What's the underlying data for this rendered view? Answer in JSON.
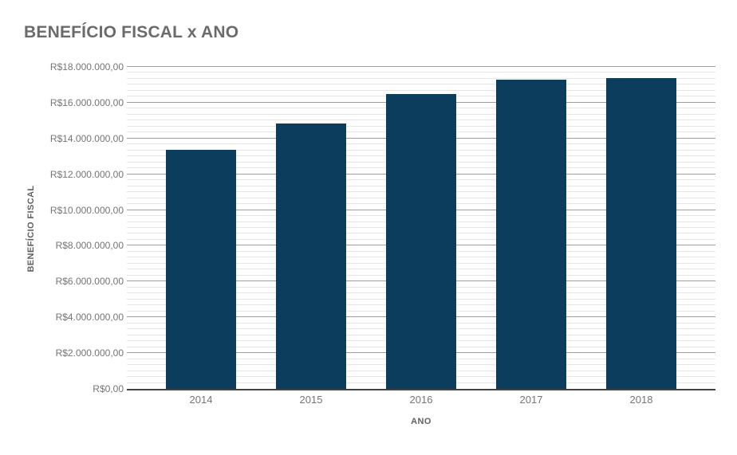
{
  "chart_data": {
    "type": "bar",
    "title": "BENEFÍCIO FISCAL x ANO",
    "xlabel": "ANO",
    "ylabel": "BENEFÍCIO FISCAL",
    "categories": [
      "2014",
      "2015",
      "2016",
      "2017",
      "2018"
    ],
    "values": [
      13350000,
      14850000,
      16470000,
      17290000,
      17360000
    ],
    "ylim": [
      0,
      18000000
    ],
    "y_major_step": 2000000,
    "y_minor_divisions": 6,
    "ytick_labels": [
      "R$0,00",
      "R$2.000.000,00",
      "R$4.000.000,00",
      "R$6.000.000,00",
      "R$8.000.000,00",
      "R$10.000.000,00",
      "R$12.000.000,00",
      "R$14.000.000,00",
      "R$16.000.000,00",
      "R$18.000.000,00"
    ],
    "grid": true,
    "legend_position": "none",
    "colors": {
      "background": "#ffffff",
      "bar": "#0d3d5c",
      "major_gridline": "#9e9e9e",
      "minor_gridline": "#e6e6e6",
      "baseline": "#424242",
      "title_text": "#6b6b6b",
      "axis_title_text": "#616161",
      "tick_text": "#757575"
    }
  }
}
